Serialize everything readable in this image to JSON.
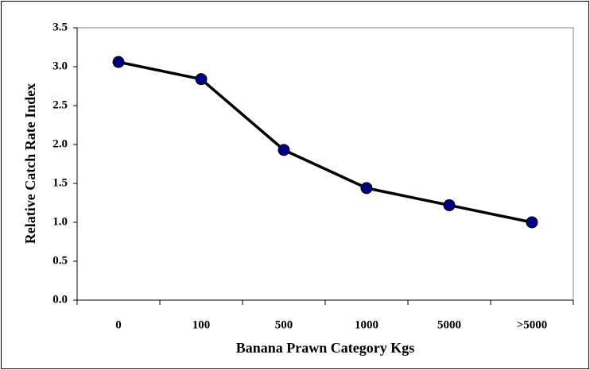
{
  "chart_data": {
    "type": "line",
    "xlabel": "Banana Prawn Category Kgs",
    "ylabel": "Relative Catch Rate Index",
    "categories": [
      "0",
      "100",
      "500",
      "1000",
      "5000",
      ">5000"
    ],
    "series": [
      {
        "color": "#000080",
        "values": [
          3.06,
          2.84,
          1.93,
          1.44,
          1.22,
          1.0
        ]
      }
    ],
    "ylim": [
      0,
      3.5
    ],
    "yticks": [
      {
        "value": 0,
        "label": "0.0"
      },
      0.5,
      {
        "value": 1,
        "label": "1.0"
      },
      1.5,
      {
        "value": 2,
        "label": "2.0"
      },
      2.5,
      {
        "value": 3,
        "label": "3.0"
      },
      3.5
    ]
  }
}
